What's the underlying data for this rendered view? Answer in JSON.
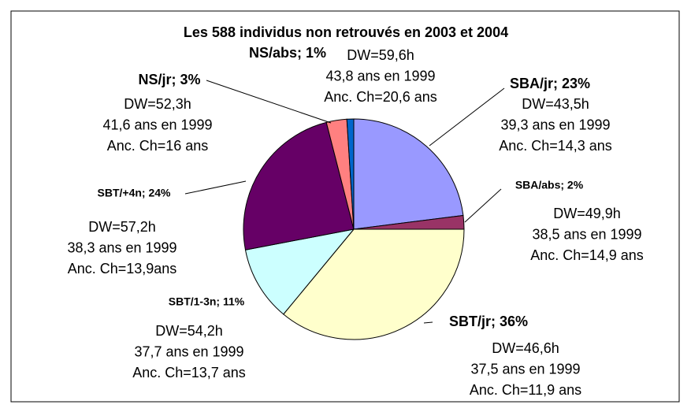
{
  "chart_data": {
    "type": "pie",
    "title": "Les 588 individus non retrouvés en 2003 et 2004",
    "values": [
      23,
      2,
      36,
      11,
      24,
      3,
      1
    ],
    "value_labels": [
      "SBA/jr; 23%",
      "SBA/abs; 2%",
      "SBT/jr; 36%",
      "SBT/1-3n; 11%",
      "SBT/+4n; 24%",
      "NS/jr; 3%",
      "NS/abs; 1%"
    ],
    "colors": [
      "#9999ff",
      "#993366",
      "#ffffcc",
      "#ccffff",
      "#660066",
      "#ff8080",
      "#0066cc"
    ],
    "annotations": [
      [
        "DW=43,5h",
        "39,3 ans en 1999",
        "Anc. Ch=14,3 ans"
      ],
      [
        "DW=49,9h",
        "38,5 ans en 1999",
        "Anc. Ch=14,9 ans"
      ],
      [
        "DW=46,6h",
        "37,5 ans en 1999",
        "Anc. Ch=11,9 ans"
      ],
      [
        "DW=54,2h",
        "37,7 ans en 1999",
        "Anc. Ch=13,7 ans"
      ],
      [
        "DW=57,2h",
        "38,3 ans en 1999",
        "Anc. Ch=13,9ans"
      ],
      [
        "DW=52,3h",
        "41,6 ans en 1999",
        "Anc. Ch=16 ans"
      ],
      [
        "DW=59,6h",
        "43,8 ans en 1999",
        "Anc. Ch=20,6 ans"
      ]
    ]
  }
}
